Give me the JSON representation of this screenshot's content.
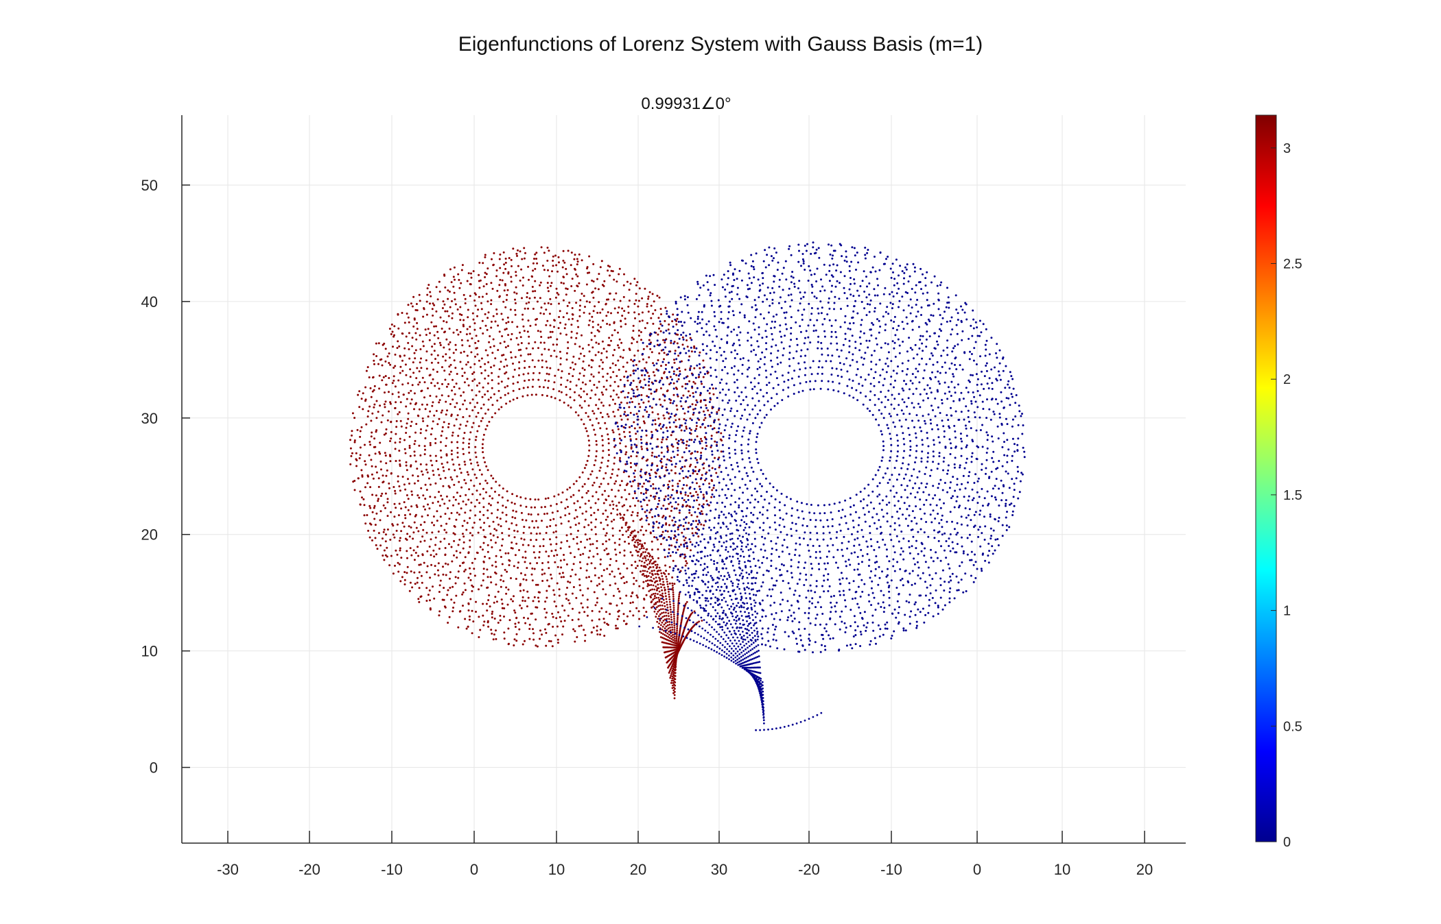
{
  "figure": {
    "suptitle": "Eigenfunctions of Lorenz System with Gauss Basis (m=1)",
    "subtitle": "0.99931∠0°"
  },
  "chart_data": {
    "type": "scatter",
    "title": "0.99931∠0°",
    "xlabel": "",
    "ylabel": "",
    "grid": true,
    "x_tick_labels": [
      "-30",
      "-20",
      "-10",
      "0",
      "10",
      "20",
      "30",
      "-20",
      "-10",
      "0",
      "10",
      "20"
    ],
    "ylim": [
      -6.5,
      56
    ],
    "y_ticks": [
      0,
      10,
      20,
      30,
      40,
      50
    ],
    "colormap": "jet",
    "colorbar": {
      "range": [
        0,
        3.14159
      ],
      "ticks": [
        0,
        0.5,
        1,
        1.5,
        2,
        2.5,
        3
      ]
    },
    "series": [
      {
        "lobe": "left",
        "phase_value": 3.14159,
        "color": "#8a0000",
        "center": [
          7.5,
          27.5
        ],
        "hole_radius": [
          6.5,
          4.5
        ],
        "outer_radius": [
          22.5,
          17.0
        ],
        "x_range": [
          -16,
          24
        ],
        "y_range": [
          5.5,
          45
        ],
        "bottom_tip": [
          24.5,
          5.5
        ]
      },
      {
        "lobe": "right",
        "phase_value": 0.0,
        "color": "#00008f",
        "center": [
          -18.5,
          27.5
        ],
        "hole_radius": [
          7.5,
          5.0
        ],
        "outer_radius": [
          24.0,
          17.5
        ],
        "x_range": [
          -25,
          6
        ],
        "y_range": [
          3,
          46.5
        ],
        "bottom_tip": [
          -25,
          3.3
        ]
      }
    ]
  }
}
